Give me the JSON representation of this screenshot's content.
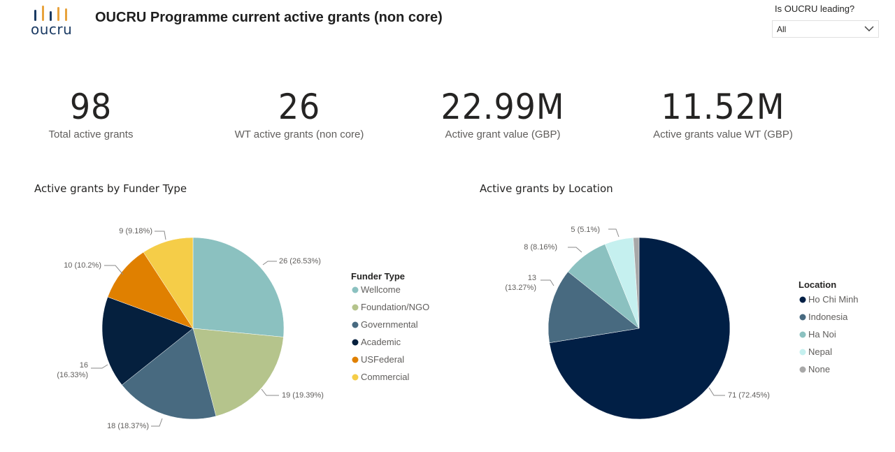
{
  "header": {
    "logo_text": "oucru",
    "title": "OUCRU Programme current active grants (non core)",
    "logo_bar_colors": [
      "#1a3a63",
      "#e8a33d",
      "#1a3a63",
      "#e8a33d",
      "#e8a33d"
    ]
  },
  "slicer": {
    "label": "Is OUCRU leading?",
    "value": "All"
  },
  "kpis": [
    {
      "value": "98",
      "label": "Total active grants"
    },
    {
      "value": "26",
      "label": "WT active grants (non core)"
    },
    {
      "value": "22.99M",
      "label": "Active grant value (GBP)"
    },
    {
      "value": "11.52M",
      "label": "Active grants value WT (GBP)"
    }
  ],
  "chart_data": [
    {
      "type": "pie",
      "title": "Active grants by Funder Type",
      "legend_title": "Funder Type",
      "legend_position": "right",
      "categories": [
        "Wellcome",
        "Foundation/NGO",
        "Governmental",
        "Academic",
        "USFederal",
        "Commercial"
      ],
      "values": [
        26,
        19,
        18,
        16,
        10,
        9
      ],
      "data_labels": [
        [
          "26 (26.53%)"
        ],
        [
          "19 (19.39%)"
        ],
        [
          "18 (18.37%)"
        ],
        [
          "16",
          "(16.33%)"
        ],
        [
          "10 (10.2%)"
        ],
        [
          "9 (9.18%)"
        ]
      ],
      "colors": [
        "#8bc1c0",
        "#b5c48c",
        "#486a80",
        "#05203e",
        "#e08000",
        "#f5cd48"
      ]
    },
    {
      "type": "pie",
      "title": "Active grants by Location",
      "legend_title": "Location",
      "legend_position": "right",
      "categories": [
        "Ho Chi Minh",
        "Indonesia",
        "Ha Noi",
        "Nepal",
        "None"
      ],
      "values": [
        71,
        13,
        8,
        5,
        1
      ],
      "data_labels": [
        [
          "71 (72.45%)"
        ],
        [
          "13",
          "(13.27%)"
        ],
        [
          "8 (8.16%)"
        ],
        [
          "5 (5.1%)"
        ],
        []
      ],
      "colors": [
        "#011f45",
        "#486a80",
        "#8bc1c0",
        "#c5f0ef",
        "#a8a8a8"
      ]
    }
  ]
}
